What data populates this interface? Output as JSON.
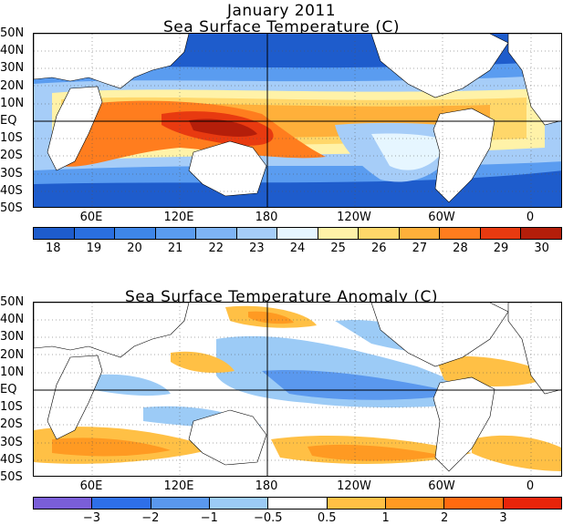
{
  "header": {
    "title": "January 2011"
  },
  "panels": {
    "sst": {
      "title": "Sea Surface Temperature (C)",
      "lat_labels": [
        "50N",
        "40N",
        "30N",
        "20N",
        "10N",
        "EQ",
        "10S",
        "20S",
        "30S",
        "40S",
        "50S"
      ],
      "lon_labels": [
        "60E",
        "120E",
        "180",
        "120W",
        "60W",
        "0"
      ],
      "colorbar": {
        "colors": [
          "#1e5ccc",
          "#2a6fe0",
          "#3e86e8",
          "#5a9cf0",
          "#7eb4f5",
          "#a6cdf8",
          "#e6f6ff",
          "#fff2a8",
          "#ffd76a",
          "#ffb03a",
          "#ff7d1e",
          "#e83a10",
          "#b41e0a"
        ],
        "labels": [
          "18",
          "19",
          "20",
          "21",
          "22",
          "23",
          "24",
          "25",
          "26",
          "27",
          "28",
          "29",
          "30"
        ]
      }
    },
    "anomaly": {
      "title": "Sea Surface Temperature Anomaly (C)",
      "lat_labels": [
        "50N",
        "40N",
        "30N",
        "20N",
        "10N",
        "EQ",
        "10S",
        "20S",
        "30S",
        "40S",
        "50S"
      ],
      "lon_labels": [
        "60E",
        "120E",
        "180",
        "120W",
        "60W",
        "0"
      ],
      "colorbar": {
        "colors": [
          "#7a5ed8",
          "#2e6fe8",
          "#5a98ee",
          "#9ccbf6",
          "#ffffff",
          "#ffc045",
          "#ff9a22",
          "#ff6a10",
          "#e8240a"
        ],
        "labels": [
          "−3",
          "−2",
          "−1",
          "−0.5",
          "0.5",
          "1",
          "2",
          "3"
        ]
      }
    }
  }
}
